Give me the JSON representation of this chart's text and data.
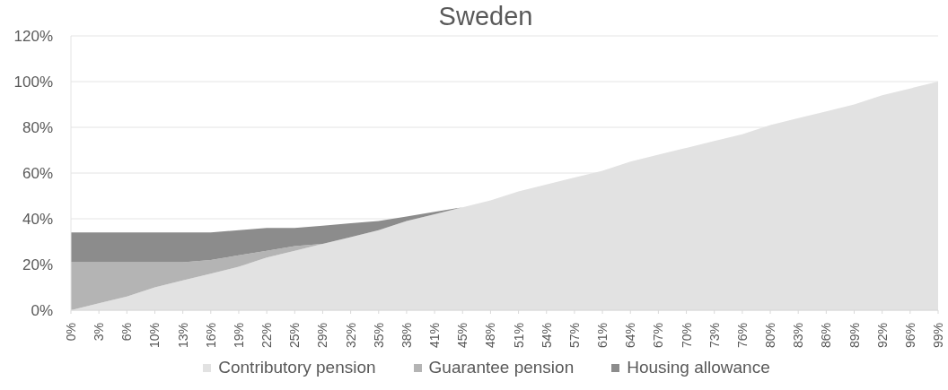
{
  "chart_data": {
    "type": "area",
    "title": "Sweden",
    "stacked": true,
    "grid": "y",
    "legend": "bottom",
    "categories": [
      "0%",
      "3%",
      "6%",
      "10%",
      "13%",
      "16%",
      "19%",
      "22%",
      "25%",
      "29%",
      "32%",
      "35%",
      "38%",
      "41%",
      "45%",
      "48%",
      "51%",
      "54%",
      "57%",
      "61%",
      "64%",
      "67%",
      "70%",
      "73%",
      "76%",
      "80%",
      "83%",
      "86%",
      "89%",
      "92%",
      "96%",
      "99%"
    ],
    "ylim": [
      0,
      120
    ],
    "yticks": [
      {
        "value": 0,
        "label": "0%"
      },
      {
        "value": 20,
        "label": "20%"
      },
      {
        "value": 40,
        "label": "40%"
      },
      {
        "value": 60,
        "label": "60%"
      },
      {
        "value": 80,
        "label": "80%"
      },
      {
        "value": 100,
        "label": "100%"
      },
      {
        "value": 120,
        "label": "120%"
      }
    ],
    "series": [
      {
        "name": "Contributory pension",
        "color": "#e2e2e2",
        "values": [
          0,
          3,
          6,
          10,
          13,
          16,
          19,
          23,
          26,
          29,
          32,
          35,
          39,
          42,
          45,
          48,
          52,
          55,
          58,
          61,
          65,
          68,
          71,
          74,
          77,
          81,
          84,
          87,
          90,
          94,
          97,
          100
        ]
      },
      {
        "name": "Guarantee pension",
        "color": "#b4b4b4",
        "values": [
          21,
          18,
          15,
          11,
          8,
          6,
          5,
          3,
          2,
          0,
          null,
          null,
          null,
          null,
          null,
          null,
          null,
          null,
          null,
          null,
          null,
          null,
          null,
          null,
          null,
          null,
          null,
          null,
          null,
          null,
          null,
          null
        ]
      },
      {
        "name": "Housing allowance",
        "color": "#8c8c8c",
        "values": [
          13,
          13,
          13,
          13,
          13,
          12,
          11,
          10,
          8,
          8,
          6,
          4,
          2,
          1,
          0,
          null,
          null,
          null,
          null,
          null,
          null,
          null,
          null,
          null,
          null,
          null,
          null,
          null,
          null,
          null,
          null,
          null
        ]
      }
    ]
  }
}
